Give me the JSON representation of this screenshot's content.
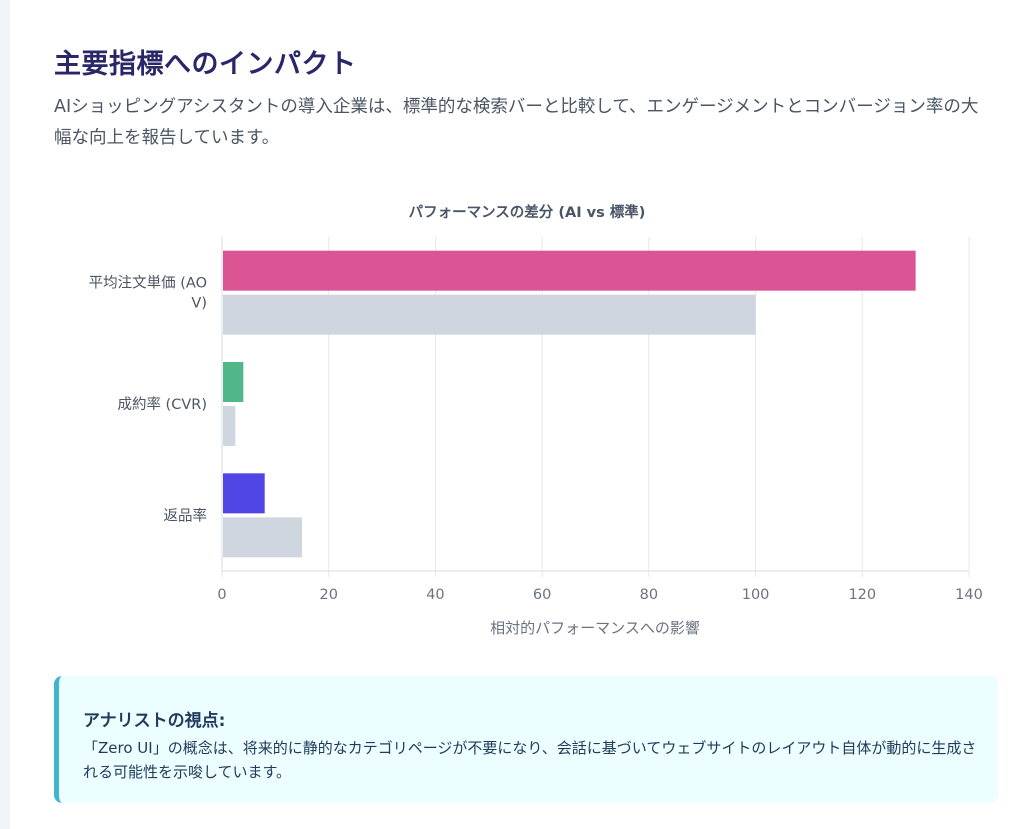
{
  "header": {
    "title": "主要指標へのインパクト",
    "description": "AIショッピングアシスタントの導入企業は、標準的な検索バーと比較して、エンゲージメントとコンバージョン率の大幅な向上を報告しています。"
  },
  "chart_data": {
    "type": "bar",
    "orientation": "horizontal",
    "title": "パフォーマンスの差分 (AI vs 標準)",
    "xlabel": "相対的パフォーマンスへの影響",
    "ylabel": "",
    "xlim": [
      0,
      140
    ],
    "xticks": [
      0,
      20,
      40,
      60,
      80,
      100,
      120,
      140
    ],
    "grid": true,
    "categories": [
      {
        "label_lines": [
          "平均注文単価 (AO",
          "V)"
        ]
      },
      {
        "label_lines": [
          "成約率 (CVR)"
        ]
      },
      {
        "label_lines": [
          "返品率"
        ]
      }
    ],
    "series": [
      {
        "name": "AI",
        "values": [
          130,
          4,
          8
        ],
        "colors": [
          "#db5494",
          "#52b788",
          "#4f46e5"
        ]
      },
      {
        "name": "標準",
        "values": [
          100,
          2.5,
          15
        ],
        "colors": [
          "#cfd6e0",
          "#cfd6e0",
          "#cfd6e0"
        ]
      }
    ]
  },
  "insight": {
    "title": "アナリストの視点:",
    "body": "「Zero UI」の概念は、将来的に静的なカテゴリページが不要になり、会話に基づいてウェブサイトのレイアウト自体が動的に生成される可能性を示唆しています。"
  }
}
